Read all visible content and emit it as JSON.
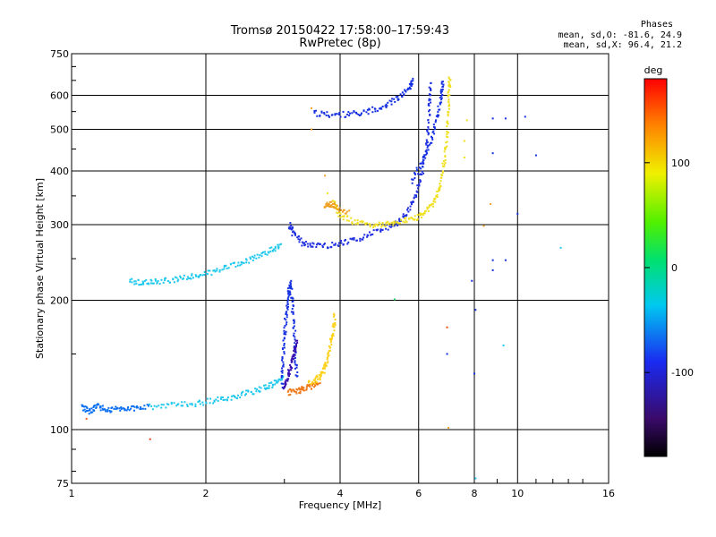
{
  "header": {
    "title_line1": "Tromsø 20150422 17:58:00–17:59:43",
    "title_line2": "RwPretec (8p)",
    "stats_title": "Phases",
    "stats_o": "mean, sd,O: -81.6, 24.9",
    "stats_x": "mean, sd,X:  96.4, 21.2"
  },
  "colorbar": {
    "unit_label": "deg",
    "tick_labels": [
      "100",
      "0",
      "-100"
    ],
    "tick_values": [
      100,
      0,
      -100
    ],
    "range": [
      -180,
      180
    ],
    "colormap": "rainbow (black-purple-blue-cyan-green-yellow-red)"
  },
  "chart_data": {
    "type": "scatter",
    "title": "Tromsø 20150422 17:58:00–17:59:43",
    "subtitle": "RwPretec (8p)",
    "xlabel": "Frequency [MHz]",
    "ylabel": "Stationary phase Virtual Height [km]",
    "x_scale": "log",
    "y_scale": "log",
    "xlim": [
      1,
      16
    ],
    "ylim": [
      75,
      750
    ],
    "x_ticks": [
      1,
      2,
      4,
      6,
      8,
      10,
      16
    ],
    "y_ticks": [
      75,
      100,
      200,
      300,
      400,
      500,
      600,
      750
    ],
    "grid": true,
    "series": [
      {
        "traces": [
          {
            "color": "#0a6ff0",
            "pts": [
              [
                1.05,
                113
              ],
              [
                1.1,
                110
              ],
              [
                1.14,
                114
              ],
              [
                1.2,
                111
              ],
              [
                1.28,
                112
              ],
              [
                1.38,
                112
              ],
              [
                1.5,
                113
              ]
            ]
          },
          {
            "color": "#1fc8ec",
            "pts": [
              [
                1.5,
                113
              ],
              [
                1.7,
                114
              ],
              [
                1.9,
                115
              ],
              [
                2.1,
                117
              ],
              [
                2.3,
                119
              ],
              [
                2.5,
                122
              ],
              [
                2.7,
                125
              ],
              [
                2.85,
                128
              ],
              [
                3.0,
                133
              ]
            ]
          },
          {
            "color": "#1fc8ec",
            "pts": [
              [
                1.35,
                222
              ],
              [
                1.45,
                220
              ],
              [
                1.55,
                221
              ],
              [
                1.7,
                223
              ],
              [
                1.85,
                227
              ],
              [
                2.0,
                231
              ],
              [
                2.2,
                237
              ],
              [
                2.4,
                244
              ],
              [
                2.6,
                252
              ],
              [
                2.8,
                262
              ],
              [
                2.95,
                268
              ]
            ]
          },
          {
            "color": "#1530e0",
            "pts": [
              [
                2.96,
                127
              ],
              [
                2.98,
                145
              ],
              [
                3.0,
                165
              ],
              [
                3.03,
                185
              ],
              [
                3.06,
                205
              ],
              [
                3.09,
                220
              ],
              [
                3.12,
                200
              ],
              [
                3.15,
                175
              ],
              [
                3.18,
                150
              ],
              [
                3.2,
                130
              ]
            ]
          },
          {
            "color": "#3a10b0",
            "pts": [
              [
                3.0,
                126
              ],
              [
                3.05,
                132
              ],
              [
                3.1,
                140
              ],
              [
                3.15,
                150
              ],
              [
                3.2,
                162
              ]
            ]
          },
          {
            "color": "#f07a1a",
            "pts": [
              [
                3.05,
                122
              ],
              [
                3.2,
                123
              ],
              [
                3.3,
                124
              ],
              [
                3.45,
                126
              ],
              [
                3.6,
                128
              ]
            ]
          },
          {
            "color": "#ffd21a",
            "pts": [
              [
                3.4,
                128
              ],
              [
                3.55,
                131
              ],
              [
                3.65,
                135
              ],
              [
                3.72,
                142
              ],
              [
                3.8,
                155
              ],
              [
                3.86,
                170
              ],
              [
                3.9,
                185
              ]
            ]
          },
          {
            "color": "#2030e0",
            "pts": [
              [
                3.08,
                300
              ],
              [
                3.15,
                285
              ],
              [
                3.3,
                272
              ],
              [
                3.5,
                268
              ],
              [
                3.8,
                268
              ],
              [
                4.1,
                272
              ],
              [
                4.5,
                280
              ],
              [
                4.9,
                290
              ],
              [
                5.3,
                300
              ],
              [
                5.6,
                315
              ],
              [
                5.85,
                340
              ],
              [
                6.05,
                380
              ],
              [
                6.2,
                430
              ],
              [
                6.3,
                500
              ],
              [
                6.35,
                580
              ],
              [
                6.38,
                640
              ]
            ]
          },
          {
            "color": "#1530e0",
            "pts": [
              [
                3.5,
                545
              ],
              [
                3.8,
                540
              ],
              [
                4.2,
                542
              ],
              [
                4.6,
                550
              ],
              [
                5.0,
                565
              ],
              [
                5.4,
                590
              ],
              [
                5.7,
                620
              ],
              [
                5.85,
                650
              ]
            ]
          },
          {
            "color": "#f0e020",
            "pts": [
              [
                3.85,
                340
              ],
              [
                4.0,
                315
              ],
              [
                4.3,
                305
              ],
              [
                4.7,
                300
              ],
              [
                5.1,
                300
              ],
              [
                5.5,
                305
              ],
              [
                5.9,
                310
              ],
              [
                6.2,
                320
              ],
              [
                6.5,
                340
              ],
              [
                6.7,
                370
              ],
              [
                6.85,
                420
              ],
              [
                6.95,
                480
              ],
              [
                7.0,
                550
              ],
              [
                7.02,
                620
              ],
              [
                7.05,
                660
              ]
            ]
          },
          {
            "color": "#f0a020",
            "pts": [
              [
                3.7,
                330
              ],
              [
                3.8,
                335
              ],
              [
                3.9,
                330
              ],
              [
                4.2,
                318
              ]
            ]
          },
          {
            "color": "#1530e0",
            "pts": [
              [
                5.8,
                380
              ],
              [
                6.1,
                420
              ],
              [
                6.4,
                470
              ],
              [
                6.6,
                530
              ],
              [
                6.75,
                600
              ],
              [
                6.8,
                650
              ]
            ]
          }
        ],
        "points": [
          {
            "x": 1.5,
            "y": 95,
            "color": "#f04020"
          },
          {
            "x": 1.08,
            "y": 106,
            "color": "#f06020"
          },
          {
            "x": 7.0,
            "y": 101,
            "color": "#f0a020"
          },
          {
            "x": 5.3,
            "y": 201,
            "color": "#20d060"
          },
          {
            "x": 6.95,
            "y": 150,
            "color": "#1530e0"
          },
          {
            "x": 6.95,
            "y": 173,
            "color": "#f05010"
          },
          {
            "x": 7.9,
            "y": 222,
            "color": "#1530e0"
          },
          {
            "x": 8.05,
            "y": 190,
            "color": "#1530e0"
          },
          {
            "x": 8.0,
            "y": 135,
            "color": "#1530e0"
          },
          {
            "x": 8.05,
            "y": 77,
            "color": "#20c8e8"
          },
          {
            "x": 8.4,
            "y": 298,
            "color": "#f0a020"
          },
          {
            "x": 8.7,
            "y": 335,
            "color": "#f0a020"
          },
          {
            "x": 8.8,
            "y": 248,
            "color": "#1530e0"
          },
          {
            "x": 8.8,
            "y": 235,
            "color": "#1530e0"
          },
          {
            "x": 9.4,
            "y": 248,
            "color": "#1530e0"
          },
          {
            "x": 9.3,
            "y": 157,
            "color": "#20c8e8"
          },
          {
            "x": 8.8,
            "y": 440,
            "color": "#1530e0"
          },
          {
            "x": 8.8,
            "y": 530,
            "color": "#1530e0"
          },
          {
            "x": 9.4,
            "y": 530,
            "color": "#1530e0"
          },
          {
            "x": 10.4,
            "y": 535,
            "color": "#1530e0"
          },
          {
            "x": 11.0,
            "y": 435,
            "color": "#1530e0"
          },
          {
            "x": 10.0,
            "y": 318,
            "color": "#1530e0"
          },
          {
            "x": 12.5,
            "y": 265,
            "color": "#20c8e8"
          },
          {
            "x": 3.45,
            "y": 500,
            "color": "#f0a020"
          },
          {
            "x": 3.45,
            "y": 560,
            "color": "#f0a020"
          },
          {
            "x": 3.7,
            "y": 390,
            "color": "#f0a020"
          },
          {
            "x": 3.75,
            "y": 355,
            "color": "#f0e020"
          },
          {
            "x": 7.7,
            "y": 525,
            "color": "#f0e020"
          },
          {
            "x": 7.6,
            "y": 470,
            "color": "#f0e020"
          },
          {
            "x": 7.6,
            "y": 430,
            "color": "#f0e020"
          }
        ]
      }
    ]
  }
}
